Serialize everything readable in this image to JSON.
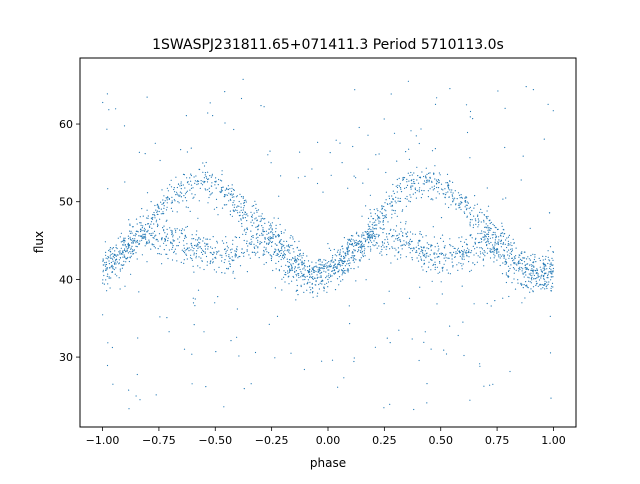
{
  "chart_data": {
    "type": "scatter",
    "title": "1SWASPJ231811.65+071411.3 Period 5710113.0s",
    "xlabel": "phase",
    "ylabel": "flux",
    "xlim": [
      -1.1,
      1.1
    ],
    "ylim": [
      21,
      68.5
    ],
    "x_ticks": [
      -1.0,
      -0.75,
      -0.5,
      -0.25,
      0.0,
      0.25,
      0.5,
      0.75,
      1.0
    ],
    "x_tick_labels": [
      "−1.00",
      "−0.75",
      "−0.50",
      "−0.25",
      "0.00",
      "0.25",
      "0.50",
      "0.75",
      "1.00"
    ],
    "y_ticks": [
      30,
      40,
      50,
      60
    ],
    "y_tick_labels": [
      "30",
      "40",
      "50",
      "60"
    ],
    "grid": false,
    "legend": "none",
    "marker_color": "#1f77b4",
    "series": [
      {
        "points_x": [
          -1.0,
          -0.95,
          -0.9,
          -0.85,
          -0.8,
          -0.75,
          -0.7,
          -0.65,
          -0.6,
          -0.55,
          -0.5,
          -0.45,
          -0.4,
          -0.35,
          -0.3,
          -0.25,
          -0.2,
          -0.15,
          -0.1,
          -0.05,
          0.0,
          0.05,
          0.1,
          0.15,
          0.2,
          0.25,
          0.3,
          0.35,
          0.4,
          0.45,
          0.5,
          0.55,
          0.6,
          0.65,
          0.7,
          0.75,
          0.8,
          0.85,
          0.9,
          0.95,
          1.0
        ],
        "upper_branch": [
          42,
          43,
          44,
          45,
          47,
          49,
          50.5,
          51.5,
          52,
          52.5,
          52,
          51,
          49.5,
          48,
          47,
          46,
          44,
          42.5,
          41.5,
          41,
          41,
          42,
          43,
          44,
          47,
          49,
          50.5,
          51.5,
          52,
          52.5,
          52,
          51,
          49.5,
          48,
          47,
          46,
          44,
          42.5,
          41.5,
          41,
          42
        ],
        "lower_branch": [
          41,
          42,
          44,
          45,
          45.5,
          45,
          45,
          44.5,
          44,
          43.5,
          43,
          43,
          43.5,
          44,
          45,
          44,
          42,
          41,
          40.5,
          40.5,
          41,
          42,
          44,
          45,
          45.5,
          45,
          45,
          44.5,
          44,
          43.5,
          43,
          43,
          43.5,
          44,
          45,
          44,
          42,
          41,
          40.5,
          40.5,
          41
        ],
        "scatter_min": 23,
        "scatter_max": 66
      }
    ]
  }
}
